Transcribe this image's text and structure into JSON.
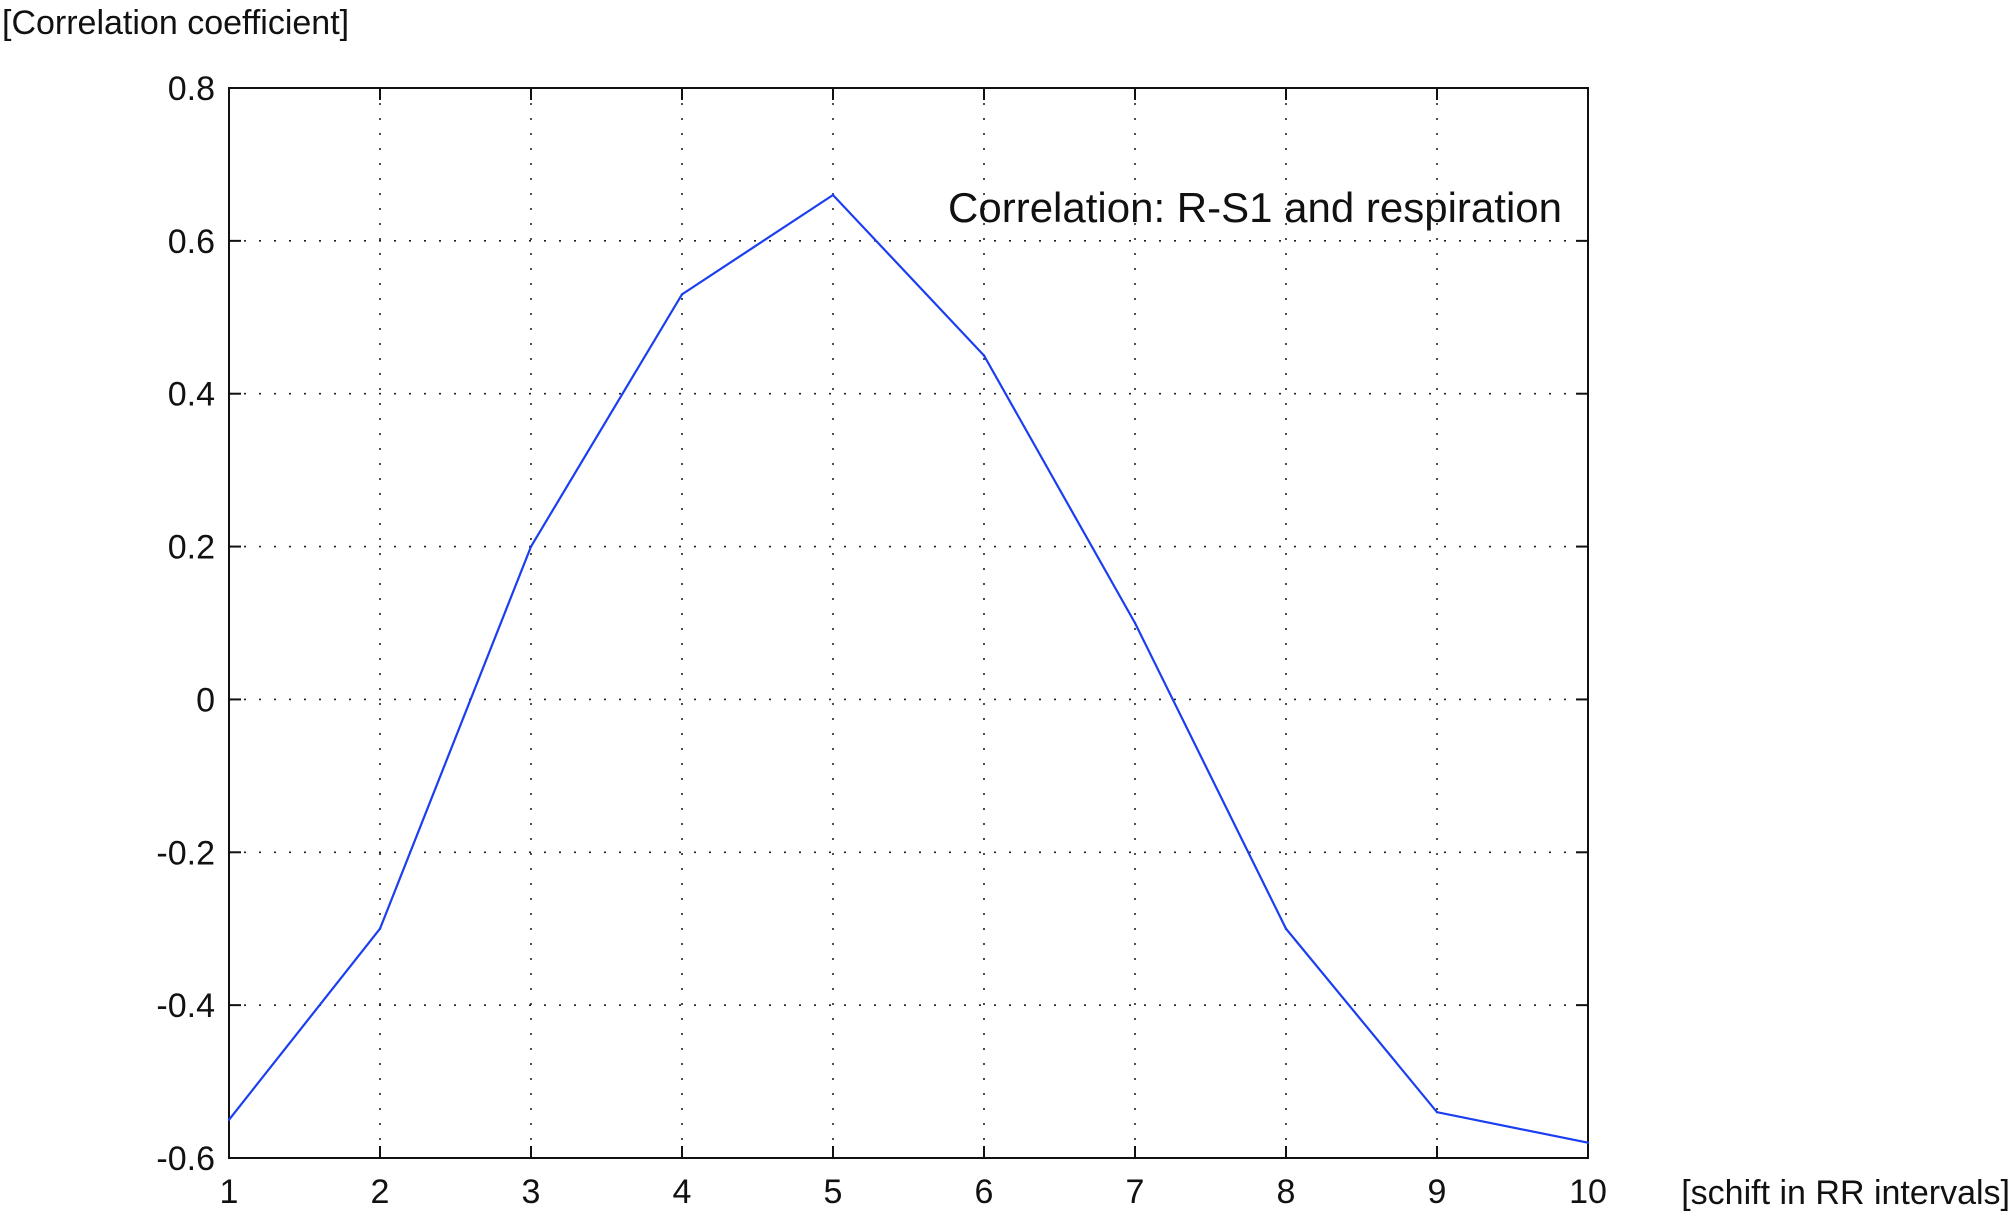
{
  "chart_data": {
    "type": "line",
    "annotation": "Correlation: R-S1 and respiration",
    "xlabel": "[schift in RR intervals]",
    "ylabel": "[Correlation coefficient]",
    "xlim": [
      1,
      10
    ],
    "ylim": [
      -0.6,
      0.8
    ],
    "x_ticks": [
      "1",
      "2",
      "3",
      "4",
      "5",
      "6",
      "7",
      "8",
      "9",
      "10"
    ],
    "y_ticks": [
      "0.8",
      "0.6",
      "0.4",
      "0.2",
      "0",
      "-0.2",
      "-0.4",
      "-0.6"
    ],
    "grid": true,
    "series": [
      {
        "x": [
          1,
          2,
          3,
          4,
          5,
          6,
          7,
          8,
          9,
          10
        ],
        "y": [
          -0.55,
          -0.3,
          0.2,
          0.53,
          0.66,
          0.45,
          0.1,
          -0.3,
          -0.54,
          -0.58
        ],
        "color": "#1a3ef0"
      }
    ]
  }
}
